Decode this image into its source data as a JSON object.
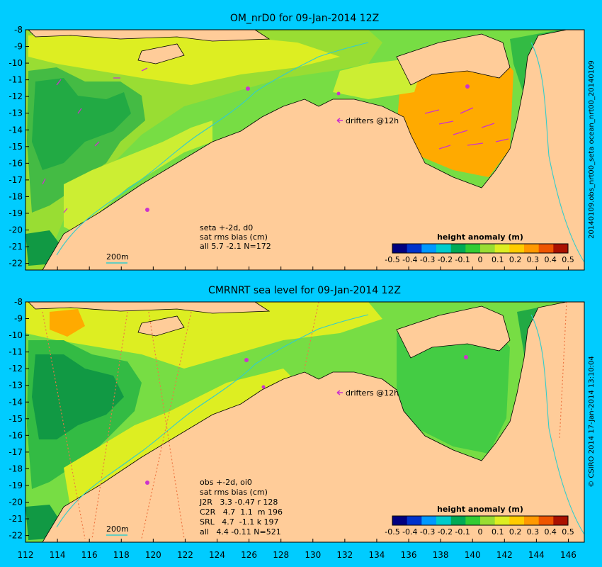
{
  "colors": {
    "background": "#00ccff",
    "land": "#ffcc99",
    "contour": "#33cccc",
    "drifter": "#cc33cc",
    "colorbar": [
      "#000080",
      "#0033cc",
      "#0099ff",
      "#00cccc",
      "#00aa55",
      "#33cc33",
      "#99dd33",
      "#ddee22",
      "#ffcc00",
      "#ff9900",
      "#ee5500",
      "#aa1100"
    ],
    "ocean_fill": [
      "#009933",
      "#22bb44",
      "#44cc44",
      "#66dd44",
      "#99dd33",
      "#ccee33",
      "#eeee22"
    ]
  },
  "maps": [
    {
      "title": "OM_nrD0 for 09-Jan-2014 12Z",
      "side_label": "20140109.obs_nrt00_seta   ocean_nrt00_20140109",
      "drifters_label": "drifters @12h",
      "contour_label": "200m",
      "stats_lines": [
        "seta +-2d, d0",
        "sat rms bias (cm)",
        "all  5.7 -2.1 N=172"
      ],
      "show_x_labels": false
    },
    {
      "title": "CMRNRT sea level  for 09-Jan-2014 12Z",
      "side_label": "© CSIRO 2014   17-Jan-2014 13:10:04",
      "drifters_label": "drifters @12h",
      "contour_label": "200m",
      "stats_lines": [
        "obs +-2d, oi0",
        "sat rms bias (cm)",
        "J2R   3.3 -0.47 r 128",
        "C2R   4.7  1.1  m 196",
        "SRL   4.7  -1.1 k 197",
        "all   4.4 -0.11 N=521"
      ],
      "show_x_labels": true
    }
  ],
  "axes": {
    "lon_ticks": [
      112,
      114,
      116,
      118,
      120,
      122,
      124,
      126,
      128,
      130,
      132,
      134,
      136,
      138,
      140,
      142,
      144,
      146
    ],
    "lat_ticks": [
      -8,
      -9,
      -10,
      -11,
      -12,
      -13,
      -14,
      -15,
      -16,
      -17,
      -18,
      -19,
      -20,
      -21,
      -22
    ],
    "lon_range": [
      112,
      147
    ],
    "lat_range": [
      -22.4,
      -8
    ]
  },
  "colorbar": {
    "title": "height anomaly (m)",
    "tick_labels": [
      "-0.5",
      "-0.4",
      "-0.3",
      "-0.2",
      "-0.1",
      "0",
      "0.1",
      "0.2",
      "0.3",
      "0.4",
      "0.5"
    ],
    "range": [
      -0.5,
      0.5
    ]
  }
}
